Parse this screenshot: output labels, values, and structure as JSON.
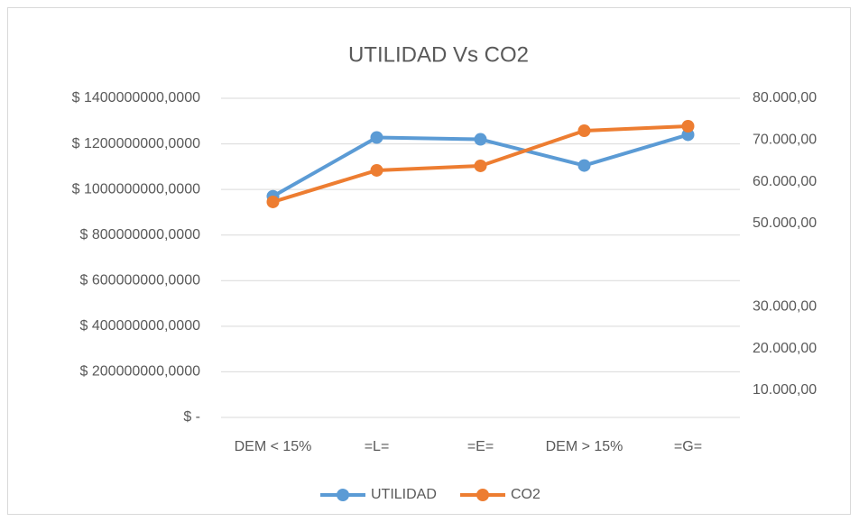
{
  "chart_data": {
    "type": "line",
    "title": "UTILIDAD Vs CO2",
    "categories": [
      "DEM < 15%",
      "=L=",
      "=E=",
      "DEM > 15%",
      "=G="
    ],
    "series": [
      {
        "name": "UTILIDAD",
        "color": "#5b9bd5",
        "values": [
          970000000,
          1228000000,
          1220000000,
          1105000000,
          1240000000
        ]
      },
      {
        "name": "CO2",
        "color": "#ed7d31",
        "axis": "y2",
        "values": [
          55160,
          62720,
          63800,
          72220,
          73300
        ]
      }
    ],
    "ylim": [
      0,
      1400000000
    ],
    "yticks": [
      {
        "value": 0,
        "label": "$ -"
      },
      {
        "value": 200000000,
        "label": "$ 200000000,0000"
      },
      {
        "value": 400000000,
        "label": "$ 400000000,0000"
      },
      {
        "value": 600000000,
        "label": "$ 600000000,0000"
      },
      {
        "value": 800000000,
        "label": "$ 800000000,0000"
      },
      {
        "value": 1000000000,
        "label": "$ 1000000000,0000"
      },
      {
        "value": 1200000000,
        "label": "$ 1200000000,0000"
      },
      {
        "value": 1400000000,
        "label": "$ 1400000000,0000"
      }
    ],
    "y2lim": [
      3500,
      80000
    ],
    "y2ticks": [
      {
        "value": 10000,
        "label": "10.000,00"
      },
      {
        "value": 20000,
        "label": "20.000,00"
      },
      {
        "value": 30000,
        "label": "30.000,00"
      },
      {
        "value": 50000,
        "label": "50.000,00"
      },
      {
        "value": 60000,
        "label": "60.000,00"
      },
      {
        "value": 70000,
        "label": "70.000,00"
      },
      {
        "value": 80000,
        "label": "80.000,00"
      }
    ],
    "grid": true,
    "legend": "bottom"
  }
}
